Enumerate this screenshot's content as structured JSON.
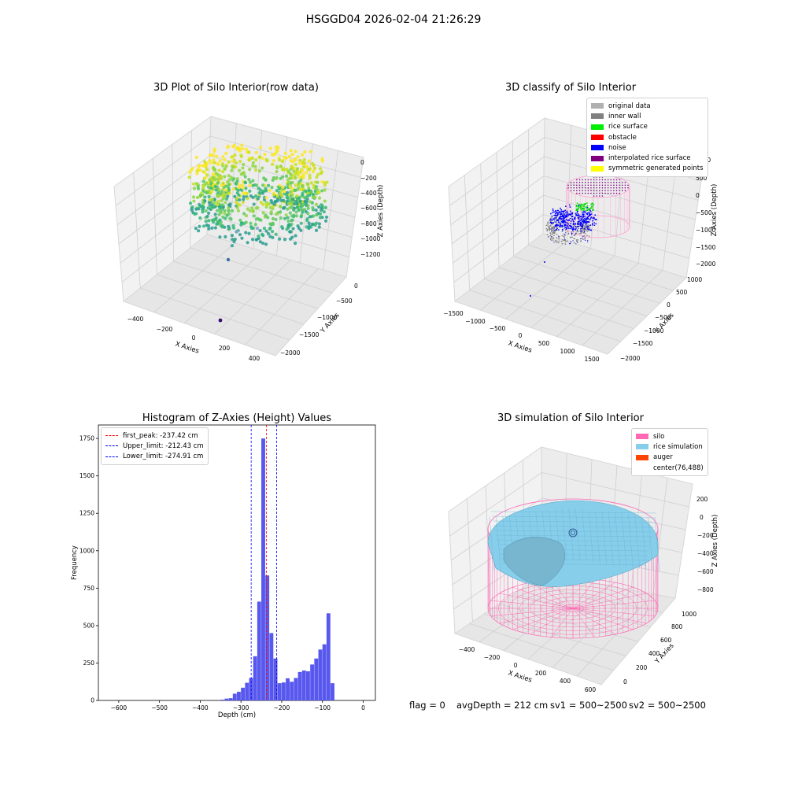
{
  "figure": {
    "suptitle": "HSGGD04 2026-02-04 21:26:29"
  },
  "panels": {
    "raw": {
      "title": "3D Plot of Silo Interior(row data)",
      "xlabel": "X Axies",
      "ylabel": "Y Axies",
      "zlabel": "Z Axies (Depth)",
      "xticks": [
        "−400",
        "−200",
        "0",
        "200",
        "400"
      ],
      "yticks": [
        "0",
        "−500",
        "−1000",
        "−1500",
        "−2000"
      ],
      "zticks": [
        "0",
        "−200",
        "−400",
        "−600",
        "−800",
        "−1000",
        "−1200"
      ]
    },
    "classify": {
      "title": "3D classify of Silo Interior",
      "xlabel": "X Axies",
      "ylabel": "Y Axies",
      "zlabel": "Z Axies (Depth)",
      "xticks": [
        "−1500",
        "−1000",
        "−500",
        "0",
        "500",
        "1000",
        "1500"
      ],
      "yticks": [
        "1000",
        "500",
        "0",
        "−500",
        "−1000",
        "−1500",
        "−2000"
      ],
      "zticks": [
        "1000",
        "500",
        "0",
        "−500",
        "−1000",
        "−1500",
        "−2000"
      ],
      "legend": [
        {
          "label": "original data",
          "color": "#b0b0b0"
        },
        {
          "label": "inner wall",
          "color": "#808080"
        },
        {
          "label": "rice surface",
          "color": "#00ee00"
        },
        {
          "label": "obstacle",
          "color": "#ff0000"
        },
        {
          "label": "noise",
          "color": "#0000ff"
        },
        {
          "label": "interpolated rice surface",
          "color": "#800080"
        },
        {
          "label": "symmetric generated points",
          "color": "#ffff00"
        }
      ]
    },
    "sim": {
      "title": "3D simulation of Silo Interior",
      "xlabel": "X Axies",
      "ylabel": "Y Axies",
      "zlabel": "Z Axies (Depth)",
      "xticks": [
        "−400",
        "−200",
        "0",
        "200",
        "400",
        "600"
      ],
      "yticks": [
        "0",
        "200",
        "400",
        "600",
        "800",
        "1000"
      ],
      "zticks": [
        "200",
        "0",
        "−200",
        "−400",
        "−600",
        "−800"
      ],
      "legend": [
        {
          "label": "silo",
          "color": "#ff69b4"
        },
        {
          "label": "rice simulation",
          "color": "#87ceeb"
        },
        {
          "label": "auger",
          "color": "#ff4500"
        },
        {
          "label": "center(76,488)",
          "color": ""
        }
      ]
    }
  },
  "chart_data": {
    "type": "bar",
    "title": "Histogram of Z-Axies (Height) Values",
    "xlabel": "Depth (cm)",
    "ylabel": "Frequency",
    "xlim": [
      -650,
      30
    ],
    "ylim": [
      0,
      1840
    ],
    "xticks": [
      -600,
      -500,
      -400,
      -300,
      -200,
      -100,
      0
    ],
    "yticks": [
      0,
      250,
      500,
      750,
      1000,
      1250,
      1500,
      1750
    ],
    "xtick_labels": [
      "−600",
      "−500",
      "−400",
      "−300",
      "−200",
      "−100",
      "0"
    ],
    "bar_color": "#5555ee",
    "bin_width": 10,
    "bins": [
      {
        "x0": -350,
        "count": 5
      },
      {
        "x0": -340,
        "count": 12
      },
      {
        "x0": -330,
        "count": 15
      },
      {
        "x0": -320,
        "count": 45
      },
      {
        "x0": -310,
        "count": 58
      },
      {
        "x0": -300,
        "count": 85
      },
      {
        "x0": -290,
        "count": 118
      },
      {
        "x0": -280,
        "count": 150
      },
      {
        "x0": -270,
        "count": 295
      },
      {
        "x0": -260,
        "count": 660
      },
      {
        "x0": -250,
        "count": 1750
      },
      {
        "x0": -240,
        "count": 835
      },
      {
        "x0": -230,
        "count": 450
      },
      {
        "x0": -220,
        "count": 280
      },
      {
        "x0": -210,
        "count": 115
      },
      {
        "x0": -200,
        "count": 120
      },
      {
        "x0": -190,
        "count": 148
      },
      {
        "x0": -180,
        "count": 125
      },
      {
        "x0": -170,
        "count": 150
      },
      {
        "x0": -160,
        "count": 190
      },
      {
        "x0": -150,
        "count": 200
      },
      {
        "x0": -140,
        "count": 195
      },
      {
        "x0": -130,
        "count": 240
      },
      {
        "x0": -120,
        "count": 280
      },
      {
        "x0": -110,
        "count": 340
      },
      {
        "x0": -100,
        "count": 375
      },
      {
        "x0": -90,
        "count": 582
      },
      {
        "x0": -80,
        "count": 115
      }
    ],
    "lines": [
      {
        "label": "first_peak: -237.42 cm",
        "value": -237.42,
        "color": "#ff0000"
      },
      {
        "label": "Upper_limit: -212.43 cm",
        "value": -212.43,
        "color": "#0000ff"
      },
      {
        "label": "Lower_limit: -274.91 cm",
        "value": -274.91,
        "color": "#0000ff"
      }
    ]
  },
  "footer": {
    "flag": "flag = 0",
    "avg_depth": "avgDepth = 212 cm",
    "sv1": "sv1 = 500~2500",
    "sv2": "sv2 = 500~2500"
  }
}
